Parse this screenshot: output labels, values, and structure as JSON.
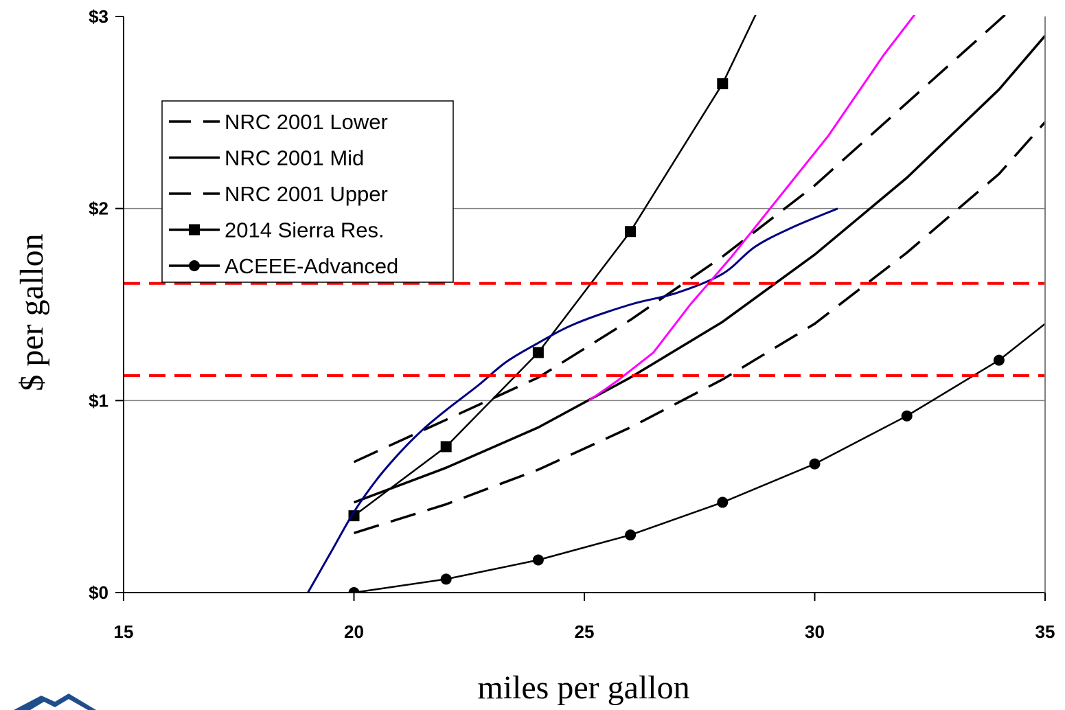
{
  "chart_data": {
    "type": "line",
    "xlabel": "miles per gallon",
    "ylabel": "$ per gallon",
    "xlim": [
      15,
      35
    ],
    "ylim": [
      0,
      3
    ],
    "x_ticks": [
      15,
      20,
      25,
      30,
      35
    ],
    "x_tick_labels": [
      "15",
      "20",
      "25",
      "30",
      "35"
    ],
    "y_ticks": [
      0,
      1,
      2,
      3
    ],
    "y_tick_labels": [
      "$0",
      "$1",
      "$2",
      "$3"
    ],
    "horizontal_gridlines": [
      1,
      2
    ],
    "legend_position": "upper-left",
    "series": [
      {
        "name": "NRC 2001 Lower",
        "style": "dashed",
        "color": "#000000",
        "marker": "none",
        "legend": true,
        "points": [
          [
            20,
            0.68
          ],
          [
            22,
            0.9
          ],
          [
            24,
            1.12
          ],
          [
            26,
            1.42
          ],
          [
            28,
            1.75
          ],
          [
            30,
            2.12
          ],
          [
            32,
            2.55
          ],
          [
            34,
            2.98
          ],
          [
            35,
            3.2
          ]
        ]
      },
      {
        "name": "NRC 2001 Mid",
        "style": "solid",
        "color": "#000000",
        "marker": "none",
        "legend": true,
        "points": [
          [
            20,
            0.47
          ],
          [
            22,
            0.65
          ],
          [
            24,
            0.86
          ],
          [
            26,
            1.12
          ],
          [
            28,
            1.41
          ],
          [
            30,
            1.76
          ],
          [
            32,
            2.16
          ],
          [
            34,
            2.62
          ],
          [
            35,
            2.9
          ]
        ]
      },
      {
        "name": "NRC 2001 Upper",
        "style": "dashed",
        "color": "#000000",
        "marker": "none",
        "legend": true,
        "points": [
          [
            20,
            0.31
          ],
          [
            22,
            0.46
          ],
          [
            24,
            0.64
          ],
          [
            26,
            0.86
          ],
          [
            28,
            1.11
          ],
          [
            30,
            1.4
          ],
          [
            32,
            1.77
          ],
          [
            34,
            2.18
          ],
          [
            35,
            2.45
          ]
        ]
      },
      {
        "name": "2014 Sierra Res.",
        "style": "solid",
        "color": "#000000",
        "marker": "square",
        "legend": true,
        "points": [
          [
            20,
            0.4
          ],
          [
            22,
            0.76
          ],
          [
            24,
            1.25
          ],
          [
            26,
            1.88
          ],
          [
            28,
            2.65
          ],
          [
            28.8,
            3.05
          ]
        ],
        "marked_points": [
          [
            20,
            0.4
          ],
          [
            22,
            0.76
          ],
          [
            24,
            1.25
          ],
          [
            26,
            1.88
          ],
          [
            28,
            2.65
          ]
        ]
      },
      {
        "name": "ACEEE-Advanced",
        "style": "solid",
        "color": "#000000",
        "marker": "circle",
        "legend": true,
        "points": [
          [
            20,
            0
          ],
          [
            22,
            0.07
          ],
          [
            24,
            0.17
          ],
          [
            26,
            0.3
          ],
          [
            28,
            0.47
          ],
          [
            30,
            0.67
          ],
          [
            32,
            0.92
          ],
          [
            34,
            1.21
          ],
          [
            35,
            1.4
          ]
        ],
        "marked_points": [
          [
            20,
            0
          ],
          [
            22,
            0.07
          ],
          [
            24,
            0.17
          ],
          [
            26,
            0.3
          ],
          [
            28,
            0.47
          ],
          [
            30,
            0.67
          ],
          [
            32,
            0.92
          ],
          [
            34,
            1.21
          ]
        ]
      },
      {
        "style": "solid",
        "color": "#000080",
        "marker": "none",
        "legend": false,
        "smooth": true,
        "points": [
          [
            19,
            0
          ],
          [
            19.5,
            0.21
          ],
          [
            20,
            0.42
          ],
          [
            20.5,
            0.59
          ],
          [
            21,
            0.73
          ],
          [
            21.5,
            0.85
          ],
          [
            22,
            0.95
          ],
          [
            22.7,
            1.08
          ],
          [
            23.3,
            1.2
          ],
          [
            24,
            1.3
          ],
          [
            24.8,
            1.4
          ],
          [
            26,
            1.5
          ],
          [
            27,
            1.56
          ],
          [
            28,
            1.66
          ],
          [
            28.7,
            1.8
          ],
          [
            29.5,
            1.9
          ],
          [
            30.5,
            2.0
          ]
        ]
      },
      {
        "style": "solid",
        "color": "#ff00ff",
        "marker": "none",
        "legend": false,
        "points": [
          [
            25.1,
            1.0
          ],
          [
            25.7,
            1.1
          ],
          [
            26.5,
            1.25
          ],
          [
            27.3,
            1.5
          ],
          [
            28.2,
            1.75
          ],
          [
            29.2,
            2.05
          ],
          [
            30.3,
            2.38
          ],
          [
            31.5,
            2.8
          ],
          [
            32.3,
            3.05
          ]
        ]
      },
      {
        "style": "dashed",
        "color": "#ff0000",
        "marker": "none",
        "legend": false,
        "points": [
          [
            15,
            1.61
          ],
          [
            35,
            1.61
          ]
        ]
      },
      {
        "style": "dashed",
        "color": "#ff0000",
        "marker": "none",
        "legend": false,
        "points": [
          [
            15,
            1.13
          ],
          [
            35,
            1.13
          ]
        ]
      }
    ]
  },
  "logo": {
    "name": "organization-logo",
    "color": "#1f4e8c"
  }
}
